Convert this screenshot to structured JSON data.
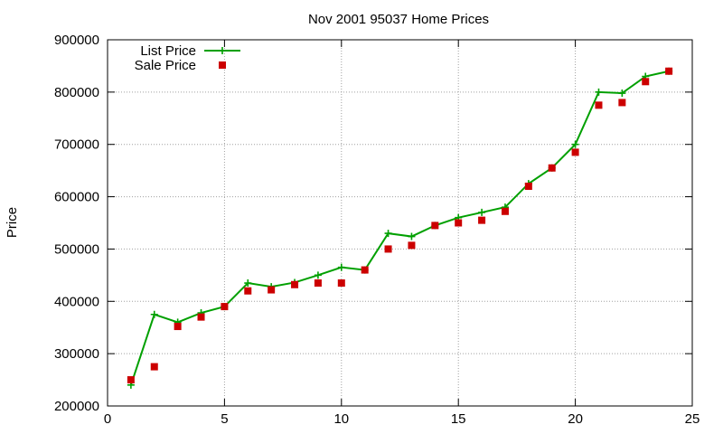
{
  "chart_data": {
    "type": "line",
    "title": "Nov 2001 95037 Home Prices",
    "xlabel": "",
    "ylabel": "Price",
    "xlim": [
      0,
      25
    ],
    "ylim": [
      200000,
      900000
    ],
    "xticks": [
      0,
      5,
      10,
      15,
      20,
      25
    ],
    "yticks": [
      200000,
      300000,
      400000,
      500000,
      600000,
      700000,
      800000,
      900000
    ],
    "grid": true,
    "legend_position": "top-left",
    "series": [
      {
        "name": "List Price",
        "style": "linespoints",
        "color": "#00a000",
        "x": [
          1,
          2,
          3,
          4,
          5,
          6,
          7,
          8,
          9,
          10,
          11,
          12,
          13,
          14,
          15,
          16,
          17,
          18,
          19,
          20,
          21,
          22,
          23,
          24
        ],
        "values": [
          240000,
          375000,
          360000,
          378000,
          390000,
          435000,
          428000,
          436000,
          450000,
          465000,
          460000,
          530000,
          524000,
          545000,
          560000,
          570000,
          580000,
          625000,
          655000,
          700000,
          800000,
          798000,
          830000,
          840000
        ]
      },
      {
        "name": "Sale Price",
        "style": "points",
        "color": "#cc0000",
        "x": [
          1,
          2,
          3,
          4,
          5,
          6,
          7,
          8,
          9,
          10,
          11,
          12,
          13,
          14,
          15,
          16,
          17,
          18,
          19,
          20,
          21,
          22,
          23,
          24
        ],
        "values": [
          250000,
          275000,
          352000,
          370000,
          390000,
          420000,
          422000,
          432000,
          435000,
          435000,
          460000,
          500000,
          507000,
          545000,
          550000,
          555000,
          572000,
          620000,
          655000,
          685000,
          775000,
          780000,
          820000,
          840000
        ]
      }
    ]
  }
}
